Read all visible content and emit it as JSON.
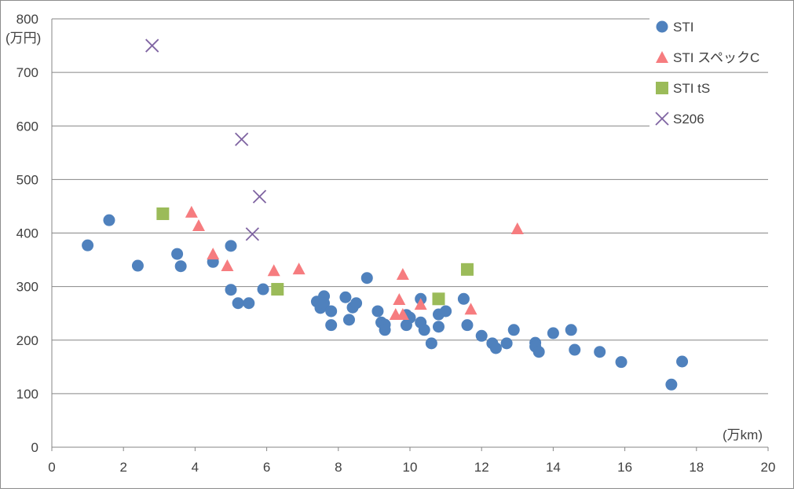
{
  "chart_data": {
    "type": "scatter",
    "title": "",
    "xlabel": "(万km)",
    "ylabel": "(万円)",
    "xlim": [
      0,
      20
    ],
    "ylim": [
      0,
      800
    ],
    "xticks": [
      "0",
      "2",
      "4",
      "6",
      "8",
      "10",
      "12",
      "14",
      "16",
      "18",
      "20"
    ],
    "yticks": [
      "0",
      "100",
      "200",
      "300",
      "400",
      "500",
      "600",
      "700",
      "800"
    ],
    "grid": "horizontal",
    "legend_position": "top-right",
    "series": [
      {
        "name": "STI",
        "marker": "circle",
        "color": "#4f81bd",
        "points": [
          [
            1.0,
            377
          ],
          [
            1.6,
            424
          ],
          [
            2.4,
            339
          ],
          [
            3.5,
            361
          ],
          [
            3.6,
            338
          ],
          [
            4.5,
            346
          ],
          [
            5.0,
            376
          ],
          [
            5.0,
            294
          ],
          [
            5.2,
            269
          ],
          [
            5.5,
            269
          ],
          [
            5.9,
            295
          ],
          [
            7.4,
            272
          ],
          [
            7.5,
            260
          ],
          [
            7.6,
            282
          ],
          [
            7.6,
            269
          ],
          [
            7.8,
            254
          ],
          [
            7.8,
            228
          ],
          [
            8.2,
            280
          ],
          [
            8.3,
            238
          ],
          [
            8.4,
            261
          ],
          [
            8.5,
            269
          ],
          [
            8.8,
            316
          ],
          [
            9.1,
            254
          ],
          [
            9.2,
            233
          ],
          [
            9.3,
            229
          ],
          [
            9.3,
            219
          ],
          [
            9.9,
            228
          ],
          [
            10.0,
            242
          ],
          [
            9.9,
            247
          ],
          [
            10.3,
            277
          ],
          [
            10.3,
            233
          ],
          [
            10.4,
            219
          ],
          [
            10.6,
            194
          ],
          [
            10.8,
            248
          ],
          [
            10.8,
            225
          ],
          [
            11.0,
            254
          ],
          [
            11.5,
            277
          ],
          [
            11.6,
            228
          ],
          [
            12.0,
            208
          ],
          [
            12.3,
            194
          ],
          [
            12.4,
            185
          ],
          [
            12.7,
            194
          ],
          [
            12.9,
            219
          ],
          [
            13.5,
            195
          ],
          [
            13.5,
            188
          ],
          [
            13.6,
            178
          ],
          [
            14.0,
            213
          ],
          [
            14.5,
            219
          ],
          [
            14.6,
            182
          ],
          [
            15.3,
            178
          ],
          [
            15.9,
            159
          ],
          [
            17.3,
            117
          ],
          [
            17.6,
            160
          ]
        ]
      },
      {
        "name": "STI スペックC",
        "marker": "triangle",
        "color": "#f67c7f",
        "points": [
          [
            3.9,
            439
          ],
          [
            4.1,
            414
          ],
          [
            4.5,
            361
          ],
          [
            4.9,
            339
          ],
          [
            6.2,
            330
          ],
          [
            6.9,
            333
          ],
          [
            9.6,
            248
          ],
          [
            9.7,
            276
          ],
          [
            9.8,
            323
          ],
          [
            9.8,
            248
          ],
          [
            10.3,
            267
          ],
          [
            11.7,
            258
          ],
          [
            13.0,
            408
          ]
        ]
      },
      {
        "name": "STI tS",
        "marker": "square",
        "color": "#9bbb59",
        "points": [
          [
            3.1,
            436
          ],
          [
            6.3,
            295
          ],
          [
            10.8,
            277
          ],
          [
            11.6,
            332
          ]
        ]
      },
      {
        "name": "S206",
        "marker": "x",
        "color": "#7f64a2",
        "points": [
          [
            2.8,
            750
          ],
          [
            5.3,
            575
          ],
          [
            5.8,
            468
          ],
          [
            5.6,
            398
          ]
        ]
      }
    ]
  }
}
